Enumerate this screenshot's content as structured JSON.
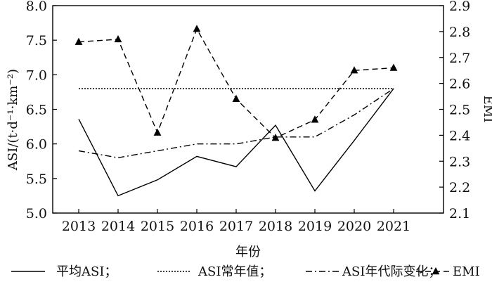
{
  "chart_data": {
    "type": "line",
    "categories": [
      "2013",
      "2014",
      "2015",
      "2016",
      "2017",
      "2018",
      "2019",
      "2020",
      "2021"
    ],
    "xlabel": "年份",
    "ylabel_left": "ASI/(t·d⁻¹·km⁻²)",
    "ylabel_right": "EMI",
    "ylim_left": [
      5.0,
      8.0
    ],
    "ylim_right": [
      2.1,
      2.9
    ],
    "yticks_left": [
      "5.0",
      "5.5",
      "6.0",
      "6.5",
      "7.0",
      "7.5",
      "8.0"
    ],
    "yticks_right": [
      "2.1",
      "2.2",
      "2.3",
      "2.4",
      "2.5",
      "2.6",
      "2.7",
      "2.8",
      "2.9"
    ],
    "grid": false,
    "legend_position": "bottom",
    "series": [
      {
        "name": "平均ASI",
        "axis": "left",
        "style": "solid",
        "marker": "none",
        "color": "#000000",
        "x": [
          "2013",
          "2014",
          "2015",
          "2016",
          "2017",
          "2018",
          "2019",
          "2020",
          "2021"
        ],
        "values": [
          6.36,
          5.25,
          5.48,
          5.82,
          5.67,
          6.27,
          5.32,
          6.05,
          6.8
        ]
      },
      {
        "name": "ASI常年值",
        "axis": "left",
        "style": "dotted",
        "marker": "none",
        "color": "#000000",
        "x": [
          "2013",
          "2021"
        ],
        "values": [
          6.8,
          6.8
        ]
      },
      {
        "name": "ASI年代际变化",
        "axis": "left",
        "style": "dashdot",
        "marker": "none",
        "color": "#000000",
        "x": [
          "2013",
          "2014",
          "2015",
          "2016",
          "2017",
          "2018",
          "2019",
          "2020",
          "2021"
        ],
        "values": [
          5.9,
          5.8,
          5.9,
          6.0,
          6.0,
          6.1,
          6.1,
          6.42,
          6.8
        ]
      },
      {
        "name": "EMI",
        "axis": "right",
        "style": "dashed",
        "marker": "triangle",
        "color": "#000000",
        "x": [
          "2013",
          "2014",
          "2015",
          "2016",
          "2017",
          "2018",
          "2019",
          "2020",
          "2021"
        ],
        "values": [
          2.76,
          2.77,
          2.41,
          2.81,
          2.54,
          2.39,
          2.46,
          2.65,
          2.66
        ]
      }
    ]
  },
  "legend": {
    "items": [
      "平均ASI；",
      "ASI常年值；",
      "ASI年代际变化；",
      "EMI"
    ]
  }
}
